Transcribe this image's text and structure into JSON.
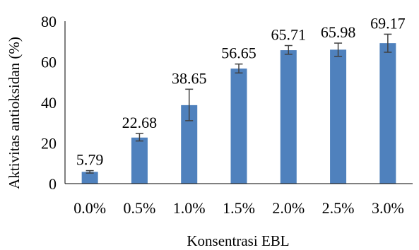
{
  "chart_data": {
    "type": "bar",
    "title": "",
    "xlabel": "Konsentrasi EBL",
    "ylabel": "Aktivitas antioksidan (%)",
    "categories": [
      "0.0%",
      "0.5%",
      "1.0%",
      "1.5%",
      "2.0%",
      "2.5%",
      "3.0%"
    ],
    "values": [
      5.79,
      22.68,
      38.65,
      56.65,
      65.71,
      65.98,
      69.17
    ],
    "data_labels": [
      "5.79",
      "22.68",
      "38.65",
      "56.65",
      "65.71",
      "65.98",
      "69.17"
    ],
    "error_low": [
      5.2,
      21.0,
      31.0,
      54.5,
      63.7,
      62.7,
      64.7
    ],
    "error_high": [
      6.4,
      24.7,
      46.5,
      58.9,
      68.0,
      69.2,
      73.6
    ],
    "ylim": [
      0,
      80
    ],
    "yticks": [
      0,
      20,
      40,
      60,
      80
    ],
    "grid": false,
    "legend": "none",
    "colors": {
      "bar": "#4f81bd",
      "error_bar": "#404040",
      "axis": "#000000",
      "text": "#000000"
    }
  }
}
